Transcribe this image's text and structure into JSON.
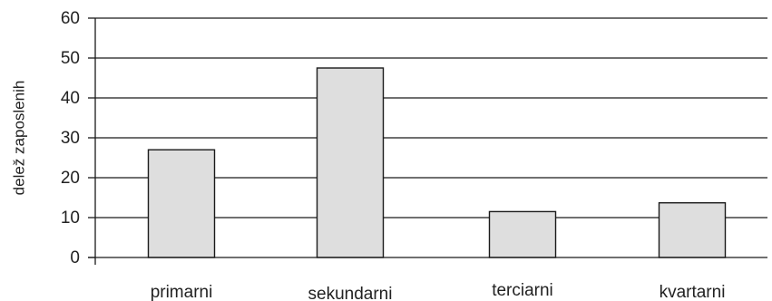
{
  "chart_data": {
    "type": "bar",
    "title": "",
    "xlabel": "",
    "ylabel": "delež zaposlenih",
    "categories": [
      "primarni",
      "sekundarni",
      "terciarni",
      "kvartarni"
    ],
    "values": [
      27,
      47.5,
      11.5,
      13.7
    ],
    "ylim": [
      0,
      60
    ],
    "yticks": [
      0,
      10,
      20,
      30,
      40,
      50,
      60
    ],
    "grid": true,
    "legend": "none",
    "colors": {
      "bar_fill": "#dedede",
      "bar_stroke": "#1a1a1a",
      "grid": "#1a1a1a",
      "axis": "#1a1a1a"
    }
  }
}
